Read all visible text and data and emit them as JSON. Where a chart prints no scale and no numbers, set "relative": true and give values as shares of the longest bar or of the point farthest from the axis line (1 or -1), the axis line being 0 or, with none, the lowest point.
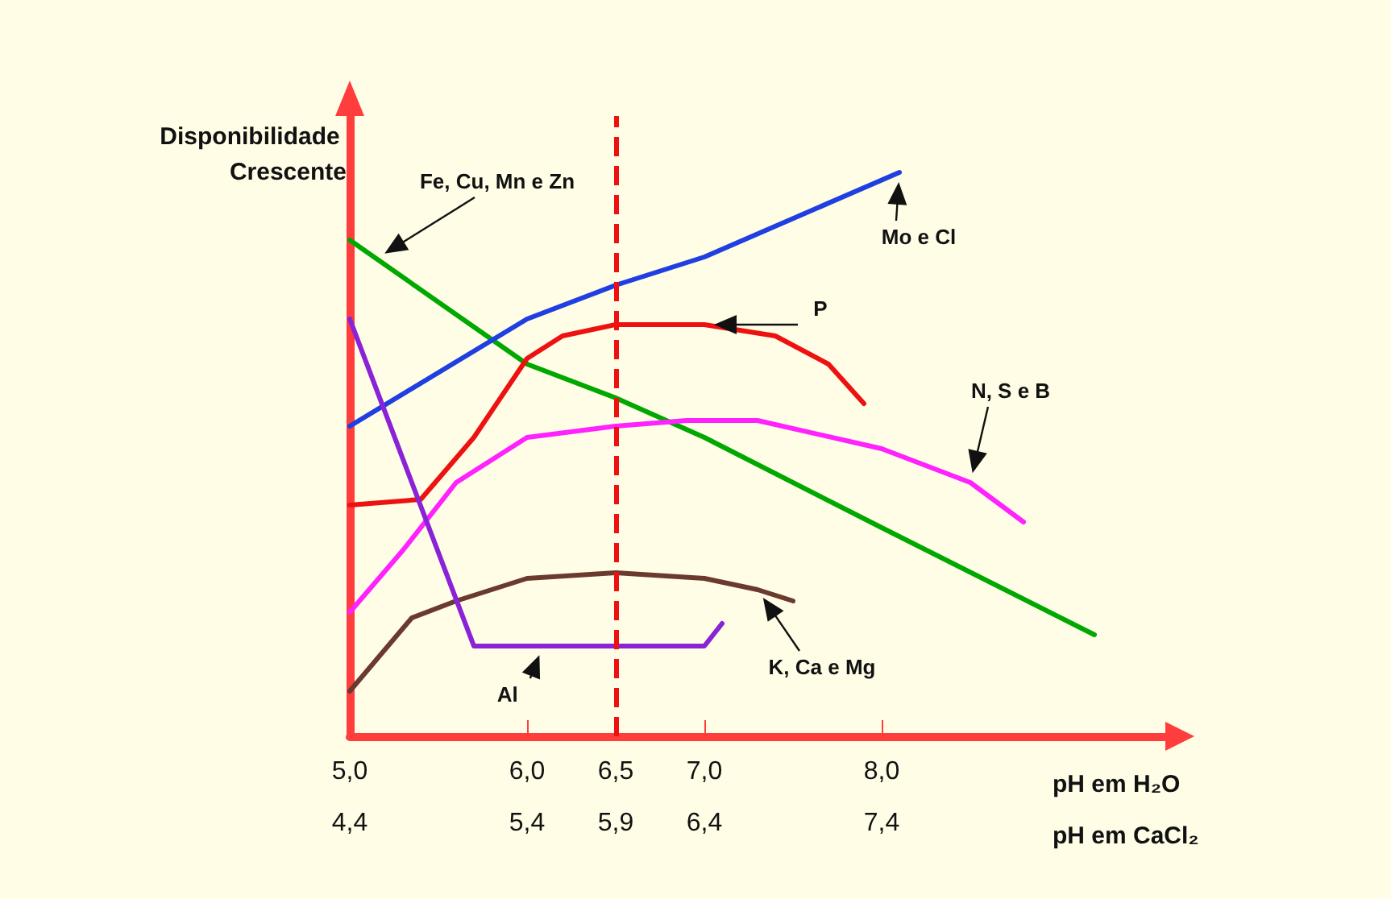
{
  "chart_data": {
    "type": "line",
    "relative": true,
    "xlabel": "pH em H₂O",
    "x2label": "pH em CaCl₂",
    "ylabel": "Disponibilidade Crescente",
    "xlim": [
      5,
      9.6
    ],
    "xticks": [
      {
        "value": 5,
        "label": "5,0"
      },
      {
        "value": 6,
        "label": "6,0"
      },
      {
        "value": 6.5,
        "label": "6,5"
      },
      {
        "value": 7,
        "label": "7,0"
      },
      {
        "value": 8,
        "label": "8,0"
      }
    ],
    "x2lim": [
      4.4,
      9.0
    ],
    "x2ticks": [
      {
        "value": 4.4,
        "label": "4,4"
      },
      {
        "value": 5.4,
        "label": "5,4"
      },
      {
        "value": 5.9,
        "label": "5,9"
      },
      {
        "value": 6.4,
        "label": "6,4"
      },
      {
        "value": 7.4,
        "label": "7,4"
      }
    ],
    "series": [
      {
        "name": "Fe, Cu, Mn e Zn",
        "color": "#00a800",
        "x": [
          5,
          6,
          6.5,
          7,
          8,
          9.2
        ],
        "values": [
          0.88,
          0.66,
          0.6,
          0.53,
          0.37,
          0.18
        ]
      },
      {
        "name": "Mo e Cl",
        "color": "#1f3fe0",
        "x": [
          5,
          6,
          6.5,
          7,
          8.1
        ],
        "values": [
          0.55,
          0.74,
          0.8,
          0.85,
          1.0
        ]
      },
      {
        "name": "P",
        "color": "#ee1111",
        "x": [
          5,
          5.4,
          5.7,
          6,
          6.2,
          6.5,
          7,
          7.4,
          7.7,
          7.9
        ],
        "values": [
          0.41,
          0.42,
          0.53,
          0.67,
          0.71,
          0.73,
          0.73,
          0.71,
          0.66,
          0.59
        ]
      },
      {
        "name": "N, S e B",
        "color": "#ff22ff",
        "x": [
          5,
          5.3,
          5.6,
          6,
          6.5,
          6.9,
          7.3,
          8,
          8.5,
          8.8
        ],
        "values": [
          0.22,
          0.33,
          0.45,
          0.53,
          0.55,
          0.56,
          0.56,
          0.51,
          0.45,
          0.38
        ]
      },
      {
        "name": "K, Ca e Mg",
        "color": "#6b3a2e",
        "x": [
          5,
          5.35,
          5.6,
          6,
          6.5,
          7,
          7.3,
          7.5
        ],
        "values": [
          0.08,
          0.21,
          0.24,
          0.28,
          0.29,
          0.28,
          0.26,
          0.24
        ]
      },
      {
        "name": "Al",
        "color": "#8a22d6",
        "x": [
          5,
          5.7,
          7,
          7.1
        ],
        "values": [
          0.74,
          0.16,
          0.16,
          0.2
        ]
      }
    ],
    "ref_lines": [
      {
        "axis": "x",
        "value": 6.5,
        "color": "#ee1111",
        "line_style": "dashed"
      }
    ],
    "marker": "none",
    "line_style": "solid",
    "grid": false,
    "legend": false
  }
}
